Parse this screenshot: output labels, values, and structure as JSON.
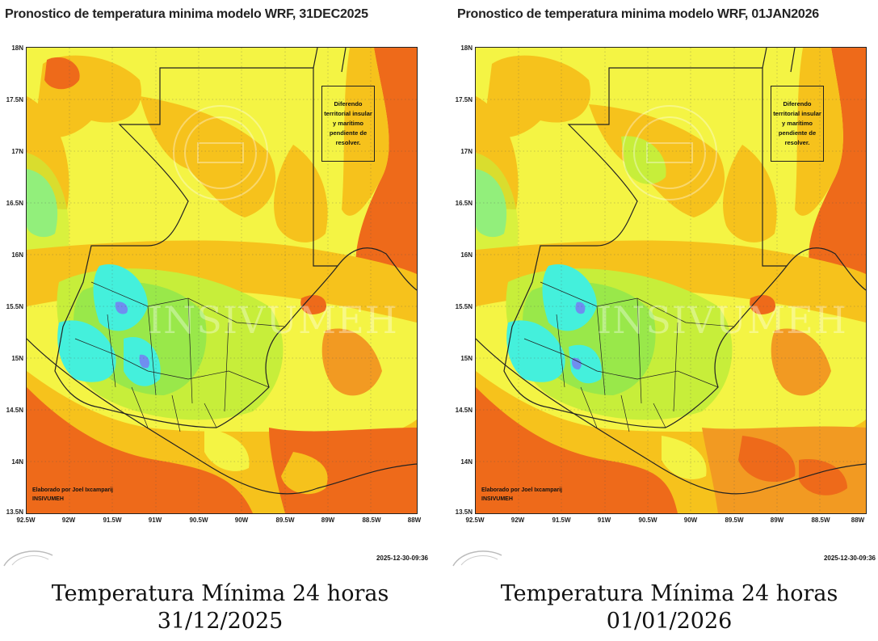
{
  "colors": {
    "light_yellow": "#f4f444",
    "yellow_green": "#c7ee3a",
    "green": "#99e84a",
    "cyan": "#44f0dc",
    "blue": "#6f8ef0",
    "yellow_orange": "#f6c21c",
    "orange": "#f29a22",
    "dark_orange": "#ee6a1a",
    "border": "#222222"
  },
  "y_labels": [
    "18N",
    "17.5N",
    "17N",
    "16.5N",
    "16N",
    "15.5N",
    "15N",
    "14.5N",
    "14N",
    "13.5N"
  ],
  "x_labels": [
    "92.5W",
    "92W",
    "91.5W",
    "91W",
    "90.5W",
    "90W",
    "89.5W",
    "89W",
    "88.5W",
    "88W"
  ],
  "panels": [
    {
      "title": "Pronostico de temperatura minima modelo WRF, 31DEC2025",
      "dispute_note": "Diferendo territorial insular y marítimo pendiente de resolver.",
      "credit_line1": "Elaborado por Joel Ixcamparij",
      "credit_line2": "INSIVUMEH",
      "timestamp": "2025-12-30-09:36",
      "watermark": "INSIVUMEH",
      "caption_line1": "Temperatura Mínima 24 horas",
      "caption_line2": "31/12/2025"
    },
    {
      "title": "Pronostico de temperatura minima modelo WRF, 01JAN2026",
      "dispute_note": "Diferendo territorial insular y marítimo pendiente de resolver.",
      "credit_line1": "Elaborado por Joel Ixcamparij",
      "credit_line2": "INSIVUMEH",
      "timestamp": "2025-12-30-09:36",
      "watermark": "INSIVUMEH",
      "caption_line1": "Temperatura Mínima 24 horas",
      "caption_line2": "01/01/2026"
    }
  ]
}
